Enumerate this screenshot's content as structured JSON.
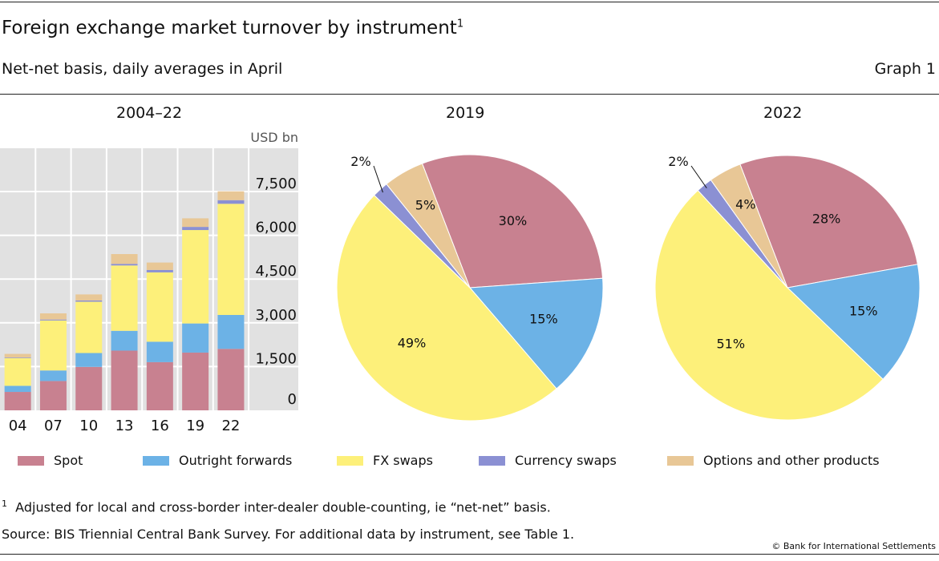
{
  "header": {
    "title": "Foreign exchange market turnover by instrument",
    "title_sup": "1",
    "subtitle": "Net-net basis, daily averages in April",
    "graph_label": "Graph 1"
  },
  "colors": {
    "Spot": "#c88190",
    "Outright forwards": "#6cb2e6",
    "FX swaps": "#fdf07a",
    "Currency swaps": "#8b90d3",
    "Options and other products": "#e8c796"
  },
  "chart_data": [
    {
      "type": "bar",
      "stacked": true,
      "title": "2004–22",
      "unit": "USD bn",
      "categories": [
        "04",
        "07",
        "10",
        "13",
        "16",
        "19",
        "22"
      ],
      "ylim": [
        0,
        8250
      ],
      "yticks": [
        "0",
        "1,500",
        "3,000",
        "4,500",
        "6,000",
        "7,500"
      ],
      "ytick_values": [
        0,
        1500,
        3000,
        4500,
        6000,
        7500
      ],
      "grid": true,
      "series": [
        {
          "name": "Spot",
          "values": [
            631,
            1005,
            1489,
            2047,
            1652,
            1979,
            2107
          ]
        },
        {
          "name": "Outright forwards",
          "values": [
            209,
            362,
            475,
            679,
            700,
            999,
            1163
          ]
        },
        {
          "name": "FX swaps",
          "values": [
            954,
            1714,
            1759,
            2240,
            2378,
            3202,
            3810
          ]
        },
        {
          "name": "Currency swaps",
          "values": [
            21,
            31,
            43,
            54,
            82,
            108,
            124
          ]
        },
        {
          "name": "Options and other products",
          "values": [
            119,
            212,
            207,
            337,
            254,
            294,
            304
          ]
        }
      ]
    },
    {
      "type": "pie",
      "title": "2019",
      "labels": [
        "Spot",
        "Outright forwards",
        "FX swaps",
        "Currency swaps",
        "Options and other products"
      ],
      "values": [
        30,
        15,
        49,
        2,
        5
      ],
      "data_labels": [
        "30%",
        "15%",
        "49%",
        "2%",
        "5%"
      ]
    },
    {
      "type": "pie",
      "title": "2022",
      "labels": [
        "Spot",
        "Outright forwards",
        "FX swaps",
        "Currency swaps",
        "Options and other products"
      ],
      "values": [
        28,
        15,
        51,
        2,
        4
      ],
      "data_labels": [
        "28%",
        "15%",
        "51%",
        "2%",
        "4%"
      ]
    }
  ],
  "legend": [
    "Spot",
    "Outright forwards",
    "FX swaps",
    "Currency swaps",
    "Options and other products"
  ],
  "footnote": {
    "mark": "1",
    "text": "Adjusted for local and cross-border inter-dealer double-counting, ie “net-net” basis."
  },
  "source": "Source: BIS Triennial Central Bank Survey. For additional data by instrument, see Table 1.",
  "copyright": "© Bank for International Settlements"
}
